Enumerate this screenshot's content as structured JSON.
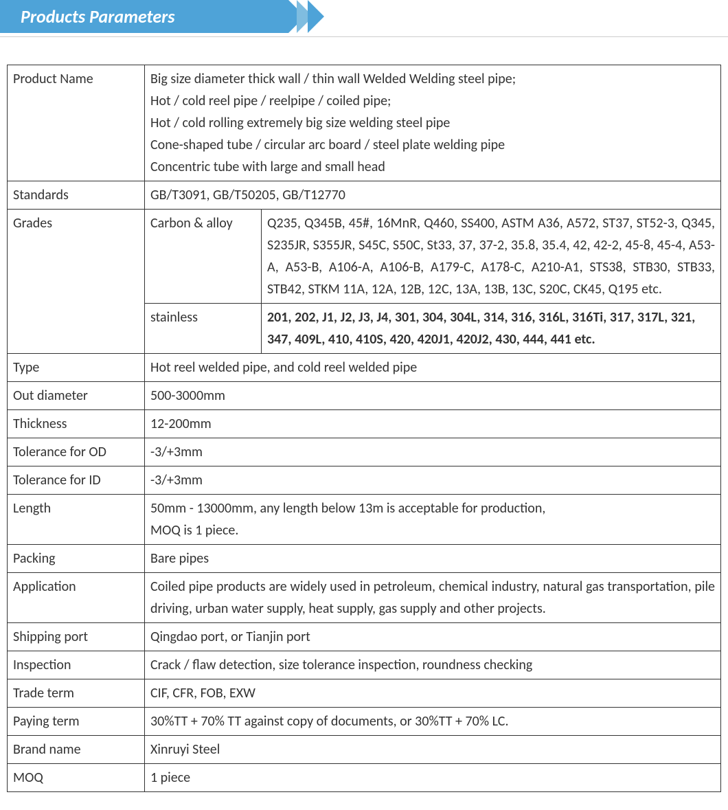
{
  "header": {
    "title": "Products Parameters",
    "banner_bg": "#4ea3d8",
    "banner_text_color": "#ffffff",
    "chevron_light": "#7fbde0"
  },
  "table": {
    "border_color": "#333333",
    "text_color": "#333333",
    "col_widths": {
      "label": 200,
      "sub": 170
    },
    "rows": [
      {
        "label": "Product Name",
        "value_lines": [
          "Big size diameter thick wall / thin wall Welded Welding steel pipe;",
          "Hot / cold reel pipe / reelpipe / coiled pipe;",
          "Hot / cold rolling extremely big size welding steel pipe",
          "Cone-shaped tube / circular arc board / steel plate welding pipe",
          "Concentric tube with large and small head"
        ]
      },
      {
        "label": "Standards",
        "value": "GB/T3091, GB/T50205, GB/T12770"
      },
      {
        "label": "Grades",
        "subrows": [
          {
            "sublabel": "Carbon & alloy",
            "value": "Q235, Q345B, 45#, 16MnR, Q460, SS400, ASTM A36, A572, ST37, ST52-3, Q345, S235JR, S355JR, S45C, S50C, St33, 37, 37-2, 35.8, 35.4, 42, 42-2, 45-8, 45-4, A53-A, A53-B, A106-A, A106-B, A179-C, A178-C, A210-A1, STS38, STB30, STB33, STB42, STKM 11A, 12A, 12B, 12C, 13A, 13B, 13C, S20C, CK45, Q195 etc.",
            "justify": true
          },
          {
            "sublabel": "stainless",
            "value": "201, 202, J1, J2, J3, J4, 301, 304, 304L, 314, 316, 316L, 316Ti, 317, 317L, 321, 347, 409L, 410, 410S, 420, 420J1, 420J2, 430, 444, 441 etc.",
            "bold": true
          }
        ]
      },
      {
        "label": "Type",
        "value": "Hot reel welded pipe, and cold reel welded pipe"
      },
      {
        "label": "Out diameter",
        "value": "500-3000mm"
      },
      {
        "label": "Thickness",
        "value": "12-200mm"
      },
      {
        "label": "Tolerance for OD",
        "value": "-3/+3mm"
      },
      {
        "label": "Tolerance for ID",
        "value": "-3/+3mm"
      },
      {
        "label": "Length",
        "value_lines": [
          "50mm - 13000mm, any length below 13m is acceptable for production,",
          "MOQ is 1 piece."
        ]
      },
      {
        "label": "Packing",
        "value": "Bare pipes"
      },
      {
        "label": "Application",
        "value": "Coiled pipe products are widely used in petroleum, chemical industry, natural gas transportation, pile driving, urban water supply, heat supply, gas supply and other projects.",
        "justify": true
      },
      {
        "label": "Shipping port",
        "value": "Qingdao port, or Tianjin port"
      },
      {
        "label": "Inspection",
        "value": "Crack / flaw detection, size tolerance inspection, roundness checking"
      },
      {
        "label": "Trade term",
        "value": "CIF, CFR, FOB, EXW"
      },
      {
        "label": "Paying term",
        "value": "30%TT + 70% TT against copy of documents, or 30%TT + 70% LC."
      },
      {
        "label": "Brand name",
        "value": "Xinruyi Steel"
      },
      {
        "label": "MOQ",
        "value": "1 piece"
      }
    ]
  }
}
